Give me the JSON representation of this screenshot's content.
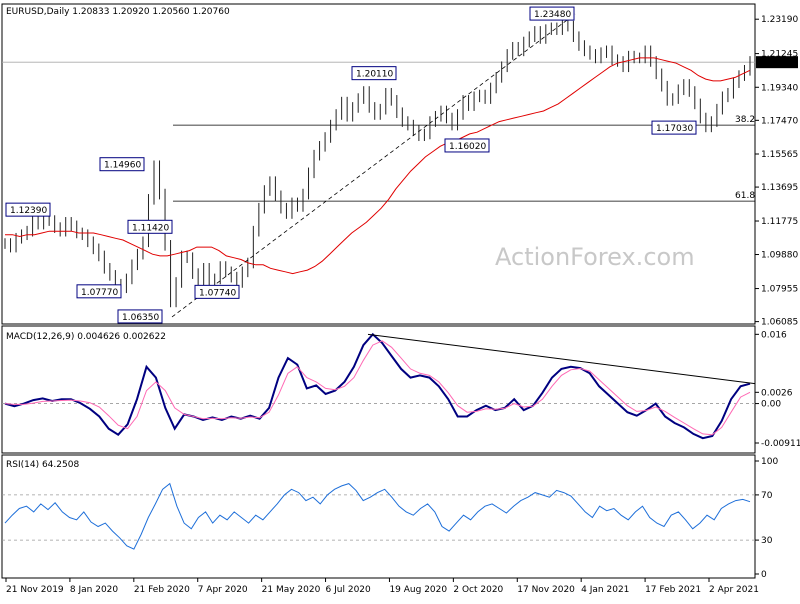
{
  "chart_data": [
    {
      "type": "line",
      "panel": "price",
      "title": "EURUSD,Daily  1.20833 1.20920 1.20560 1.20760",
      "symbol": "EURUSD",
      "timeframe": "Daily",
      "ohlc": {
        "open": 1.20833,
        "high": 1.2092,
        "low": 1.2056,
        "close": 1.2076
      },
      "ylim": [
        1.0595,
        1.2405
      ],
      "y_ticks": [
        "1.23190",
        "1.21245",
        "1.19340",
        "1.17470",
        "1.15565",
        "1.13695",
        "1.11775",
        "1.09880",
        "1.07955",
        "1.06085"
      ],
      "current_price_label": "1.20760",
      "x_tick_labels": [
        "21 Nov 2019",
        "8 Jan 2020",
        "21 Feb 2020",
        "7 Apr 2020",
        "21 May 2020",
        "6 Jul 2020",
        "19 Aug 2020",
        "2 Oct 2020",
        "17 Nov 2020",
        "4 Jan 2021",
        "17 Feb 2021",
        "2 Apr 2021"
      ],
      "series": [
        {
          "values": [
            1.105,
            1.103,
            1.108,
            1.11,
            1.112,
            1.118,
            1.116,
            1.121,
            1.118,
            1.114,
            1.112,
            1.117,
            1.115,
            1.111,
            1.11,
            1.106,
            1.102,
            1.098,
            1.091,
            1.087,
            1.082,
            1.08,
            1.085,
            1.093,
            1.099,
            1.106,
            1.13,
            1.149,
            1.133,
            1.104,
            1.072,
            1.083,
            1.098,
            1.097,
            1.088,
            1.08,
            1.091,
            1.083,
            1.085,
            1.092,
            1.089,
            1.086,
            1.083,
            1.089,
            1.094,
            1.112,
            1.125,
            1.135,
            1.14,
            1.132,
            1.125,
            1.122,
            1.128,
            1.126,
            1.133,
            1.145,
            1.155,
            1.16,
            1.165,
            1.172,
            1.178,
            1.185,
            1.177,
            1.182,
            1.187,
            1.191,
            1.182,
            1.178,
            1.181,
            1.19,
            1.186,
            1.179,
            1.174,
            1.172,
            1.169,
            1.166,
            1.167,
            1.174,
            1.177,
            1.18,
            1.176,
            1.172,
            1.178,
            1.186,
            1.183,
            1.188,
            1.189,
            1.187,
            1.193,
            1.199,
            1.205,
            1.212,
            1.216,
            1.214,
            1.219,
            1.222,
            1.225,
            1.221,
            1.226,
            1.227,
            1.226,
            1.23,
            1.228,
            1.222,
            1.217,
            1.214,
            1.212,
            1.21,
            1.213,
            1.214,
            1.209,
            1.208,
            1.205,
            1.211,
            1.21,
            1.21,
            1.214,
            1.208,
            1.201,
            1.194,
            1.186,
            1.187,
            1.192,
            1.195,
            1.191,
            1.184,
            1.176,
            1.171,
            1.174,
            1.181,
            1.188,
            1.19,
            1.196,
            1.2,
            1.203,
            1.208
          ],
          "color": "#000000"
        },
        {
          "values": [
            1.11,
            1.11,
            1.109,
            1.11,
            1.11,
            1.111,
            1.112,
            1.112,
            1.112,
            1.112,
            1.111,
            1.111,
            1.111,
            1.11,
            1.109,
            1.108,
            1.107,
            1.105,
            1.103,
            1.101,
            1.099,
            1.098,
            1.098,
            1.099,
            1.1,
            1.101,
            1.103,
            1.103,
            1.103,
            1.101,
            1.098,
            1.097,
            1.096,
            1.094,
            1.093,
            1.093,
            1.091,
            1.09,
            1.089,
            1.088,
            1.089,
            1.09,
            1.092,
            1.095,
            1.099,
            1.103,
            1.107,
            1.111,
            1.114,
            1.117,
            1.121,
            1.125,
            1.13,
            1.136,
            1.141,
            1.146,
            1.15,
            1.154,
            1.157,
            1.16,
            1.162,
            1.163,
            1.165,
            1.167,
            1.168,
            1.17,
            1.172,
            1.174,
            1.175,
            1.176,
            1.177,
            1.178,
            1.179,
            1.18,
            1.182,
            1.184,
            1.187,
            1.19,
            1.193,
            1.196,
            1.199,
            1.202,
            1.205,
            1.207,
            1.208,
            1.209,
            1.21,
            1.21,
            1.21,
            1.209,
            1.208,
            1.207,
            1.205,
            1.203,
            1.2,
            1.198,
            1.197,
            1.197,
            1.198,
            1.199,
            1.201,
            1.203
          ],
          "color": "#e00000",
          "note": "moving average"
        }
      ],
      "annotations": [
        {
          "label": "1.12390",
          "value": 1.1239
        },
        {
          "label": "1.14960",
          "value": 1.1496
        },
        {
          "label": "1.11420",
          "value": 1.1142
        },
        {
          "label": "1.07770",
          "value": 1.0777
        },
        {
          "label": "1.06350",
          "value": 1.0635
        },
        {
          "label": "1.07740",
          "value": 1.0774
        },
        {
          "label": "1.20110",
          "value": 1.2011
        },
        {
          "label": "1.16020",
          "value": 1.1602
        },
        {
          "label": "1.23480",
          "value": 1.2348
        },
        {
          "label": "1.17030",
          "value": 1.1703
        }
      ],
      "fib_levels": [
        {
          "label": "38.2",
          "value": 1.172
        },
        {
          "label": "61.8",
          "value": 1.129
        }
      ],
      "trendline": {
        "from_value": 1.0635,
        "to_value": 1.2348,
        "style": "dashed"
      },
      "watermark": "ActionForex.com"
    },
    {
      "type": "line",
      "panel": "macd",
      "title": "MACD(12,26,9) 0.004626 0.002622",
      "ylim": [
        -0.0105,
        0.017
      ],
      "y_ticks": [
        "0.016",
        "0.0026",
        "0.00",
        "-0.009116"
      ],
      "series": [
        {
          "name": "MACD",
          "color": "#000080",
          "values": [
            0.0,
            -0.0006,
            0.0,
            0.0008,
            0.0012,
            0.0006,
            0.001,
            0.001,
            0.0001,
            -0.0012,
            -0.003,
            -0.0058,
            -0.0072,
            -0.0048,
            0.001,
            0.0085,
            0.006,
            -0.001,
            -0.0058,
            -0.0025,
            -0.003,
            -0.0038,
            -0.0032,
            -0.0038,
            -0.003,
            -0.0035,
            -0.0028,
            -0.0035,
            -0.001,
            0.006,
            0.0105,
            0.009,
            0.0035,
            0.0042,
            0.0022,
            0.003,
            0.005,
            0.0085,
            0.0135,
            0.016,
            0.014,
            0.011,
            0.008,
            0.006,
            0.0065,
            0.006,
            0.004,
            0.001,
            -0.003,
            -0.003,
            -0.0015,
            -0.0005,
            -0.0015,
            -0.001,
            0.001,
            -0.0015,
            -0.0005,
            0.0025,
            0.006,
            0.008,
            0.0085,
            0.0082,
            0.007,
            0.004,
            0.002,
            0.0,
            -0.002,
            -0.0028,
            -0.0015,
            0.0,
            -0.003,
            -0.0045,
            -0.0055,
            -0.007,
            -0.008,
            -0.0075,
            -0.004,
            0.001,
            0.004,
            0.0046
          ]
        },
        {
          "name": "Signal",
          "color": "#ff69b4",
          "values": [
            0.0,
            -0.0002,
            -0.0002,
            0.0001,
            0.0005,
            0.0006,
            0.0007,
            0.0008,
            0.0006,
            0.0002,
            -0.0008,
            -0.0028,
            -0.005,
            -0.0058,
            -0.003,
            0.003,
            0.005,
            0.003,
            -0.001,
            -0.0025,
            -0.003,
            -0.0035,
            -0.0034,
            -0.0035,
            -0.0033,
            -0.0034,
            -0.0031,
            -0.0033,
            -0.002,
            0.002,
            0.007,
            0.0085,
            0.006,
            0.005,
            0.0035,
            0.0032,
            0.004,
            0.006,
            0.01,
            0.0135,
            0.0145,
            0.013,
            0.0105,
            0.008,
            0.007,
            0.0065,
            0.005,
            0.0025,
            -0.0005,
            -0.002,
            -0.0018,
            -0.0012,
            -0.0013,
            -0.0011,
            0.0,
            -0.0008,
            -0.0006,
            0.001,
            0.004,
            0.0065,
            0.0078,
            0.0081,
            0.0075,
            0.0055,
            0.0035,
            0.0015,
            -0.0005,
            -0.0018,
            -0.0016,
            -0.0008,
            -0.0018,
            -0.0032,
            -0.0045,
            -0.0058,
            -0.007,
            -0.0072,
            -0.0055,
            -0.002,
            0.0015,
            0.0026
          ]
        }
      ],
      "trendline": {
        "from_value": 0.016,
        "to_value": 0.0046,
        "style": "solid"
      }
    },
    {
      "type": "line",
      "panel": "rsi",
      "title": "RSI(14) 64.2508",
      "ylim": [
        0,
        100
      ],
      "y_ticks": [
        "100",
        "70",
        "30",
        "0"
      ],
      "levels": [
        70,
        30
      ],
      "series": [
        {
          "name": "RSI",
          "color": "#1e6fd9",
          "values": [
            45,
            52,
            58,
            60,
            55,
            62,
            57,
            63,
            55,
            50,
            48,
            55,
            46,
            42,
            45,
            38,
            32,
            25,
            22,
            35,
            50,
            62,
            75,
            80,
            60,
            45,
            40,
            50,
            55,
            45,
            52,
            48,
            55,
            50,
            45,
            52,
            48,
            55,
            62,
            70,
            75,
            72,
            65,
            68,
            62,
            70,
            75,
            78,
            80,
            74,
            65,
            68,
            72,
            75,
            68,
            60,
            55,
            52,
            58,
            62,
            55,
            42,
            38,
            45,
            52,
            48,
            55,
            60,
            62,
            58,
            54,
            60,
            65,
            68,
            72,
            70,
            68,
            74,
            72,
            69,
            62,
            55,
            50,
            60,
            56,
            58,
            52,
            48,
            55,
            60,
            50,
            45,
            42,
            52,
            55,
            48,
            40,
            45,
            52,
            48,
            58,
            62,
            65,
            66,
            64
          ]
        }
      ]
    }
  ]
}
